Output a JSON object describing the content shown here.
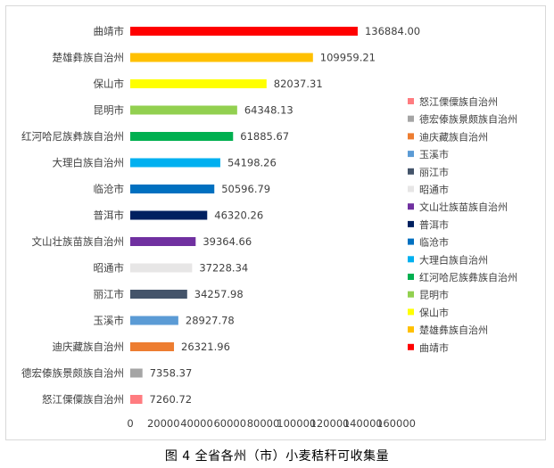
{
  "caption": "图 4 全省各州（市）小麦秸秆可收集量",
  "chart_data": {
    "type": "bar",
    "orientation": "horizontal",
    "categories": [
      "曲靖市",
      "楚雄彝族自治州",
      "保山市",
      "昆明市",
      "红河哈尼族彝族自治州",
      "大理白族自治州",
      "临沧市",
      "普洱市",
      "文山壮族苗族自治州",
      "昭通市",
      "丽江市",
      "玉溪市",
      "迪庆藏族自治州",
      "德宏傣族景颇族自治州",
      "怒江傈僳族自治州"
    ],
    "values": [
      136884.0,
      109959.21,
      82037.31,
      64348.13,
      61885.67,
      54198.26,
      50596.79,
      46320.26,
      39364.66,
      37228.34,
      34257.98,
      28927.78,
      26321.96,
      7358.37,
      7260.72
    ],
    "value_labels": [
      "136884.00",
      "109959.21",
      "82037.31",
      "64348.13",
      "61885.67",
      "54198.26",
      "50596.79",
      "46320.26",
      "39364.66",
      "37228.34",
      "34257.98",
      "28927.78",
      "26321.96",
      "7358.37",
      "7260.72"
    ],
    "colors": [
      "#ff0000",
      "#ffc000",
      "#ffff00",
      "#92d050",
      "#00b050",
      "#00b0f0",
      "#0070c0",
      "#002060",
      "#7030a0",
      "#e7e6e6",
      "#44546a",
      "#5b9bd5",
      "#ed7d31",
      "#a5a5a5",
      "#ff7c80"
    ],
    "xlim": [
      0,
      160000
    ],
    "xticks": [
      0,
      20000,
      40000,
      60000,
      80000,
      100000,
      120000,
      140000,
      160000
    ],
    "xtick_labels": [
      "0",
      "20000",
      "40000",
      "60000",
      "80000",
      "100000",
      "120000",
      "140000",
      "160000"
    ],
    "grid": false,
    "legend_position": "right",
    "legend_order": [
      "怒江傈僳族自治州",
      "德宏傣族景颇族自治州",
      "迪庆藏族自治州",
      "玉溪市",
      "丽江市",
      "昭通市",
      "文山壮族苗族自治州",
      "普洱市",
      "临沧市",
      "大理白族自治州",
      "红河哈尼族彝族自治州",
      "昆明市",
      "保山市",
      "楚雄彝族自治州",
      "曲靖市"
    ]
  }
}
